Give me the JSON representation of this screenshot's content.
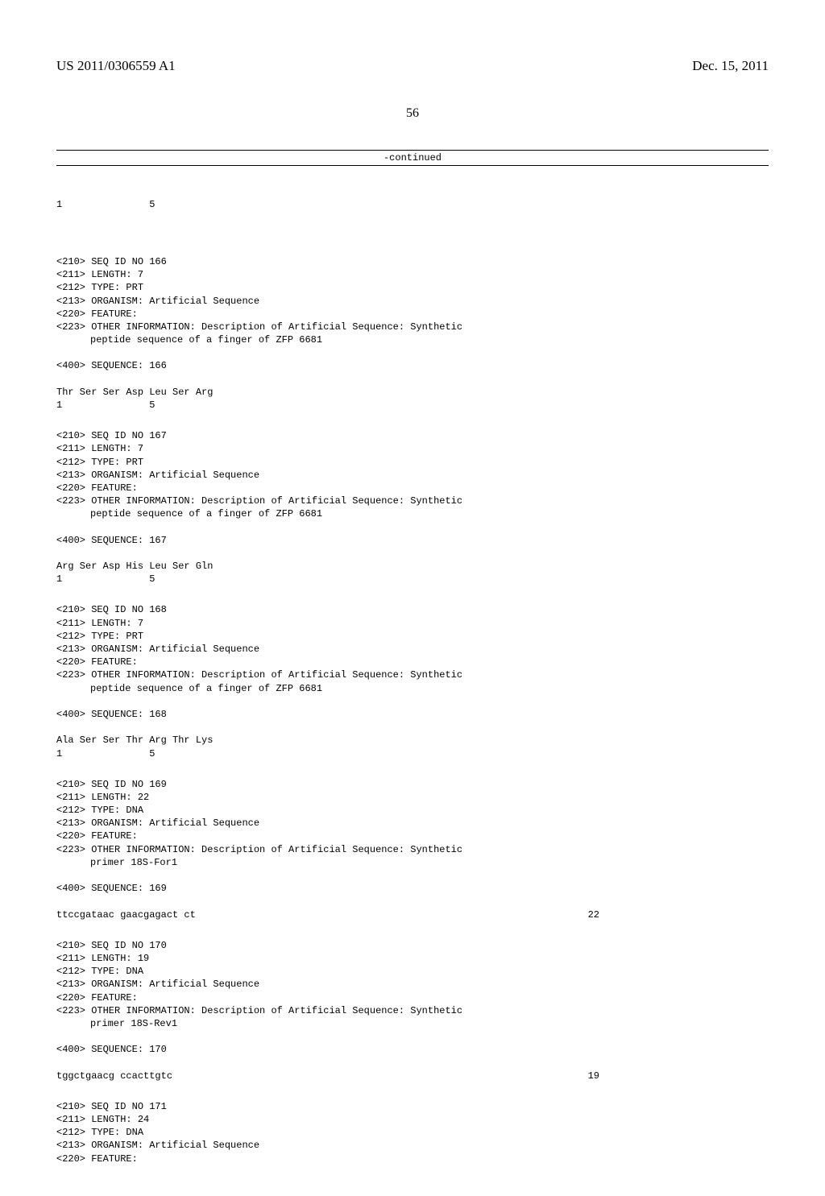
{
  "header": {
    "patent_number": "US 2011/0306559 A1",
    "date": "Dec. 15, 2011"
  },
  "page_number": "56",
  "continued_label": "-continued",
  "positions_line": "1               5",
  "sequences": [
    {
      "header_lines": [
        "<210> SEQ ID NO 166",
        "<211> LENGTH: 7",
        "<212> TYPE: PRT",
        "<213> ORGANISM: Artificial Sequence",
        "<220> FEATURE:",
        "<223> OTHER INFORMATION: Description of Artificial Sequence: Synthetic"
      ],
      "indent_line": "peptide sequence of a finger of ZFP 6681",
      "sequence_label": "<400> SEQUENCE: 166",
      "residues": "Thr Ser Ser Asp Leu Ser Arg",
      "positions": "1               5",
      "length_val": ""
    },
    {
      "header_lines": [
        "<210> SEQ ID NO 167",
        "<211> LENGTH: 7",
        "<212> TYPE: PRT",
        "<213> ORGANISM: Artificial Sequence",
        "<220> FEATURE:",
        "<223> OTHER INFORMATION: Description of Artificial Sequence: Synthetic"
      ],
      "indent_line": "peptide sequence of a finger of ZFP 6681",
      "sequence_label": "<400> SEQUENCE: 167",
      "residues": "Arg Ser Asp His Leu Ser Gln",
      "positions": "1               5",
      "length_val": ""
    },
    {
      "header_lines": [
        "<210> SEQ ID NO 168",
        "<211> LENGTH: 7",
        "<212> TYPE: PRT",
        "<213> ORGANISM: Artificial Sequence",
        "<220> FEATURE:",
        "<223> OTHER INFORMATION: Description of Artificial Sequence: Synthetic"
      ],
      "indent_line": "peptide sequence of a finger of ZFP 6681",
      "sequence_label": "<400> SEQUENCE: 168",
      "residues": "Ala Ser Ser Thr Arg Thr Lys",
      "positions": "1               5",
      "length_val": ""
    },
    {
      "header_lines": [
        "<210> SEQ ID NO 169",
        "<211> LENGTH: 22",
        "<212> TYPE: DNA",
        "<213> ORGANISM: Artificial Sequence",
        "<220> FEATURE:",
        "<223> OTHER INFORMATION: Description of Artificial Sequence: Synthetic"
      ],
      "indent_line": "primer 18S-For1",
      "sequence_label": "<400> SEQUENCE: 169",
      "residues": "ttccgataac gaacgagact ct",
      "positions": "",
      "length_val": "22"
    },
    {
      "header_lines": [
        "<210> SEQ ID NO 170",
        "<211> LENGTH: 19",
        "<212> TYPE: DNA",
        "<213> ORGANISM: Artificial Sequence",
        "<220> FEATURE:",
        "<223> OTHER INFORMATION: Description of Artificial Sequence: Synthetic"
      ],
      "indent_line": "primer 18S-Rev1",
      "sequence_label": "<400> SEQUENCE: 170",
      "residues": "tggctgaacg ccacttgtc",
      "positions": "",
      "length_val": "19"
    },
    {
      "header_lines": [
        "<210> SEQ ID NO 171",
        "<211> LENGTH: 24",
        "<212> TYPE: DNA",
        "<213> ORGANISM: Artificial Sequence",
        "<220> FEATURE:"
      ],
      "indent_line": "",
      "sequence_label": "",
      "residues": "",
      "positions": "",
      "length_val": ""
    }
  ]
}
